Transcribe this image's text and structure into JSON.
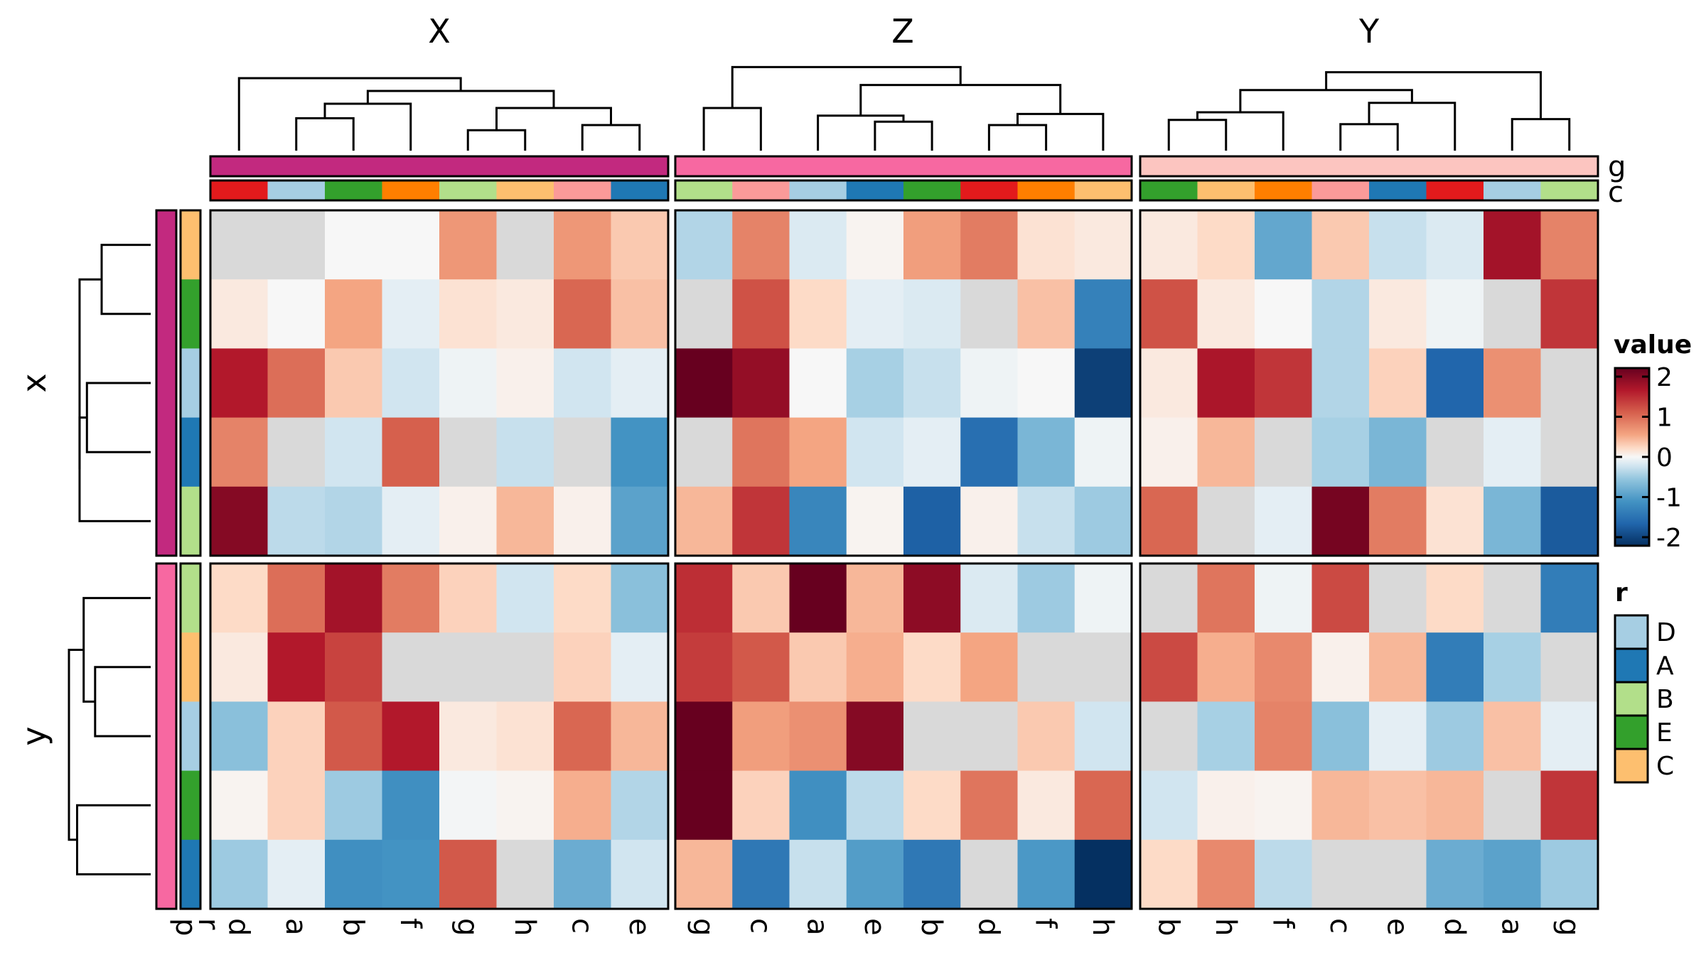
{
  "chart_data": {
    "type": "heatmap",
    "title": "",
    "color_scale": {
      "name": "value",
      "min": -2,
      "max": 2,
      "ticks": [
        "2",
        "1",
        "0",
        "-1",
        "-2"
      ],
      "stops": [
        {
          "v": -2,
          "color": "#053061"
        },
        {
          "v": -1.5,
          "color": "#2166ac"
        },
        {
          "v": -1,
          "color": "#4393c3"
        },
        {
          "v": -0.5,
          "color": "#92c5de"
        },
        {
          "v": -0.2,
          "color": "#d1e5f0"
        },
        {
          "v": 0,
          "color": "#f7f7f7"
        },
        {
          "v": 0.2,
          "color": "#fddbc7"
        },
        {
          "v": 0.5,
          "color": "#f4a582"
        },
        {
          "v": 1,
          "color": "#d6604d"
        },
        {
          "v": 1.5,
          "color": "#b2182b"
        },
        {
          "v": 2,
          "color": "#67001f"
        }
      ],
      "na_color": "#d9d9d9"
    },
    "column_slices": [
      {
        "title": "X",
        "columns": [
          "d",
          "a",
          "b",
          "f",
          "g",
          "h",
          "c",
          "e"
        ],
        "g_color": "#c2297f"
      },
      {
        "title": "Z",
        "columns": [
          "g",
          "c",
          "a",
          "e",
          "b",
          "d",
          "f",
          "h"
        ],
        "g_color": "#f768a1"
      },
      {
        "title": "Y",
        "columns": [
          "b",
          "h",
          "f",
          "c",
          "e",
          "d",
          "a",
          "g"
        ],
        "g_color": "#fcc5c0"
      }
    ],
    "column_annotations": {
      "g_label": "g",
      "c_label": "c",
      "c_colors": [
        [
          "#e31a1c",
          "#a6cee3",
          "#33a02c",
          "#ff7f00",
          "#b2df8a",
          "#fdbf6f",
          "#fb9a99",
          "#1f78b4"
        ],
        [
          "#b2df8a",
          "#fb9a99",
          "#a6cee3",
          "#1f78b4",
          "#33a02c",
          "#e31a1c",
          "#ff7f00",
          "#fdbf6f"
        ],
        [
          "#33a02c",
          "#fdbf6f",
          "#ff7f00",
          "#fb9a99",
          "#1f78b4",
          "#e31a1c",
          "#a6cee3",
          "#b2df8a"
        ]
      ]
    },
    "row_slices": [
      {
        "title": "x",
        "p_color": "#c2297f",
        "r_colors": [
          "#fdbf6f",
          "#33a02c",
          "#a6cee3",
          "#1f78b4",
          "#b2df8a"
        ]
      },
      {
        "title": "y",
        "p_color": "#f768a1",
        "r_colors": [
          "#b2df8a",
          "#fdbf6f",
          "#a6cee3",
          "#33a02c",
          "#1f78b4"
        ]
      }
    ],
    "row_annotation_labels": [
      "p",
      "r"
    ],
    "values": [
      [
        [
          null,
          null,
          0.0,
          0.0,
          0.6,
          null,
          0.6,
          0.3
        ],
        [
          0.1,
          0.0,
          0.5,
          -0.1,
          0.15,
          0.1,
          0.95,
          0.35
        ],
        [
          1.5,
          0.9,
          0.3,
          -0.2,
          -0.05,
          0.05,
          -0.2,
          -0.1
        ],
        [
          0.75,
          null,
          -0.2,
          1.0,
          null,
          -0.25,
          null,
          -1.0
        ],
        [
          1.8,
          -0.3,
          -0.35,
          -0.1,
          0.05,
          0.4,
          0.05,
          -0.85
        ]
      ],
      [
        [
          -0.35,
          0.75,
          -0.15,
          0.03,
          0.55,
          0.8,
          0.15,
          0.1
        ],
        [
          null,
          1.1,
          0.2,
          -0.1,
          -0.15,
          null,
          0.35,
          -1.2
        ],
        [
          2.0,
          1.7,
          0.0,
          -0.4,
          -0.25,
          -0.05,
          0.0,
          -1.85
        ],
        [
          null,
          0.85,
          0.5,
          -0.2,
          -0.1,
          -1.4,
          -0.65,
          -0.05
        ],
        [
          0.4,
          1.3,
          -1.15,
          0.03,
          -1.55,
          0.05,
          -0.25,
          -0.45
        ]
      ],
      [
        [
          0.1,
          0.2,
          -0.8,
          0.3,
          -0.25,
          -0.15,
          1.6,
          0.75
        ],
        [
          1.1,
          0.1,
          0.0,
          -0.35,
          0.1,
          -0.05,
          null,
          1.3
        ],
        [
          0.1,
          1.55,
          1.3,
          -0.35,
          0.25,
          -1.5,
          0.65,
          null
        ],
        [
          0.05,
          0.4,
          null,
          -0.4,
          -0.65,
          null,
          -0.1,
          null
        ],
        [
          0.95,
          null,
          -0.1,
          1.9,
          0.8,
          0.15,
          -0.65,
          -1.6
        ]
      ],
      [
        [
          0.2,
          0.9,
          1.6,
          0.8,
          0.25,
          -0.2,
          0.2,
          -0.55
        ],
        [
          0.1,
          1.5,
          1.2,
          null,
          null,
          null,
          0.25,
          -0.1
        ],
        [
          -0.55,
          0.25,
          1.05,
          1.5,
          0.1,
          0.15,
          0.95,
          0.4
        ],
        [
          0.03,
          0.25,
          -0.45,
          -1.05,
          -0.02,
          0.03,
          0.45,
          -0.35
        ],
        [
          -0.45,
          -0.1,
          -1.05,
          -1.0,
          1.05,
          null,
          -0.75,
          -0.2
        ]
      ],
      [
        [
          1.35,
          0.3,
          2.0,
          0.4,
          1.75,
          -0.15,
          -0.45,
          -0.05
        ],
        [
          1.25,
          1.05,
          0.3,
          0.45,
          0.2,
          0.5,
          null,
          null
        ],
        [
          2.0,
          0.55,
          0.65,
          1.8,
          null,
          null,
          0.3,
          -0.2
        ],
        [
          2.0,
          0.25,
          -1.05,
          -0.3,
          0.2,
          0.85,
          0.1,
          0.95
        ],
        [
          0.4,
          -1.3,
          -0.25,
          -0.9,
          -1.3,
          null,
          -0.95,
          -2.0
        ]
      ],
      [
        [
          null,
          0.85,
          -0.05,
          1.15,
          null,
          0.2,
          null,
          -1.25
        ],
        [
          1.15,
          0.45,
          0.7,
          0.05,
          0.4,
          -1.25,
          -0.4,
          null
        ],
        [
          null,
          -0.4,
          0.75,
          -0.55,
          -0.1,
          -0.45,
          0.35,
          -0.1
        ],
        [
          -0.2,
          0.05,
          0.03,
          0.4,
          0.35,
          0.4,
          null,
          1.3
        ],
        [
          0.2,
          0.7,
          -0.3,
          null,
          null,
          -0.75,
          -0.85,
          -0.45
        ]
      ]
    ],
    "legends": {
      "value_title": "value",
      "r_title": "r",
      "r_items": [
        {
          "label": "D",
          "color": "#a6cee3"
        },
        {
          "label": "A",
          "color": "#1f78b4"
        },
        {
          "label": "B",
          "color": "#b2df8a"
        },
        {
          "label": "E",
          "color": "#33a02c"
        },
        {
          "label": "C",
          "color": "#fdbf6f"
        }
      ]
    }
  }
}
